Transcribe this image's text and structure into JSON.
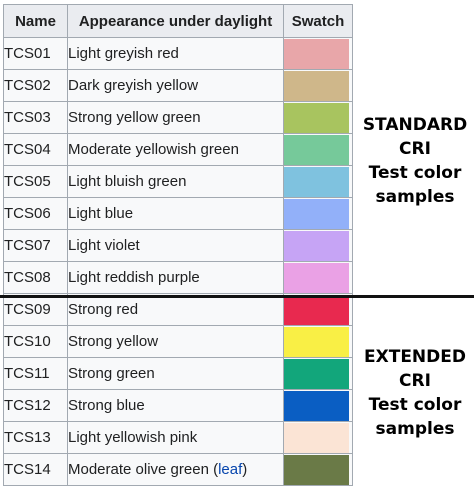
{
  "headers": {
    "name": "Name",
    "appearance": "Appearance under daylight",
    "swatch": "Swatch"
  },
  "rows": [
    {
      "name": "TCS01",
      "appearance": "Light greyish red",
      "color": "#e8a6a9"
    },
    {
      "name": "TCS02",
      "appearance": "Dark greyish yellow",
      "color": "#cfb78a"
    },
    {
      "name": "TCS03",
      "appearance": "Strong yellow green",
      "color": "#a8c45f"
    },
    {
      "name": "TCS04",
      "appearance": "Moderate yellowish green",
      "color": "#76c99a"
    },
    {
      "name": "TCS05",
      "appearance": "Light bluish green",
      "color": "#7fc2df"
    },
    {
      "name": "TCS06",
      "appearance": "Light blue",
      "color": "#92b0f9"
    },
    {
      "name": "TCS07",
      "appearance": "Light violet",
      "color": "#c6a4f5"
    },
    {
      "name": "TCS08",
      "appearance": "Light reddish purple",
      "color": "#eaa1e5"
    },
    {
      "name": "TCS09",
      "appearance": "Strong red",
      "color": "#e8294f"
    },
    {
      "name": "TCS10",
      "appearance": "Strong yellow",
      "color": "#f9ef45"
    },
    {
      "name": "TCS11",
      "appearance": "Strong green",
      "color": "#12a67b"
    },
    {
      "name": "TCS12",
      "appearance": "Strong blue",
      "color": "#0a5ec3"
    },
    {
      "name": "TCS13",
      "appearance": "Light yellowish pink",
      "color": "#fbe4d5"
    },
    {
      "name": "TCS14",
      "appearance": "Moderate olive green (",
      "link": "leaf",
      "appearance_suffix": ")",
      "color": "#6a7a47"
    }
  ],
  "standard_label": [
    "STANDARD",
    "CRI",
    "Test color",
    "samples"
  ],
  "extended_label": [
    "EXTENDED",
    "CRI",
    "Test color",
    "samples"
  ]
}
